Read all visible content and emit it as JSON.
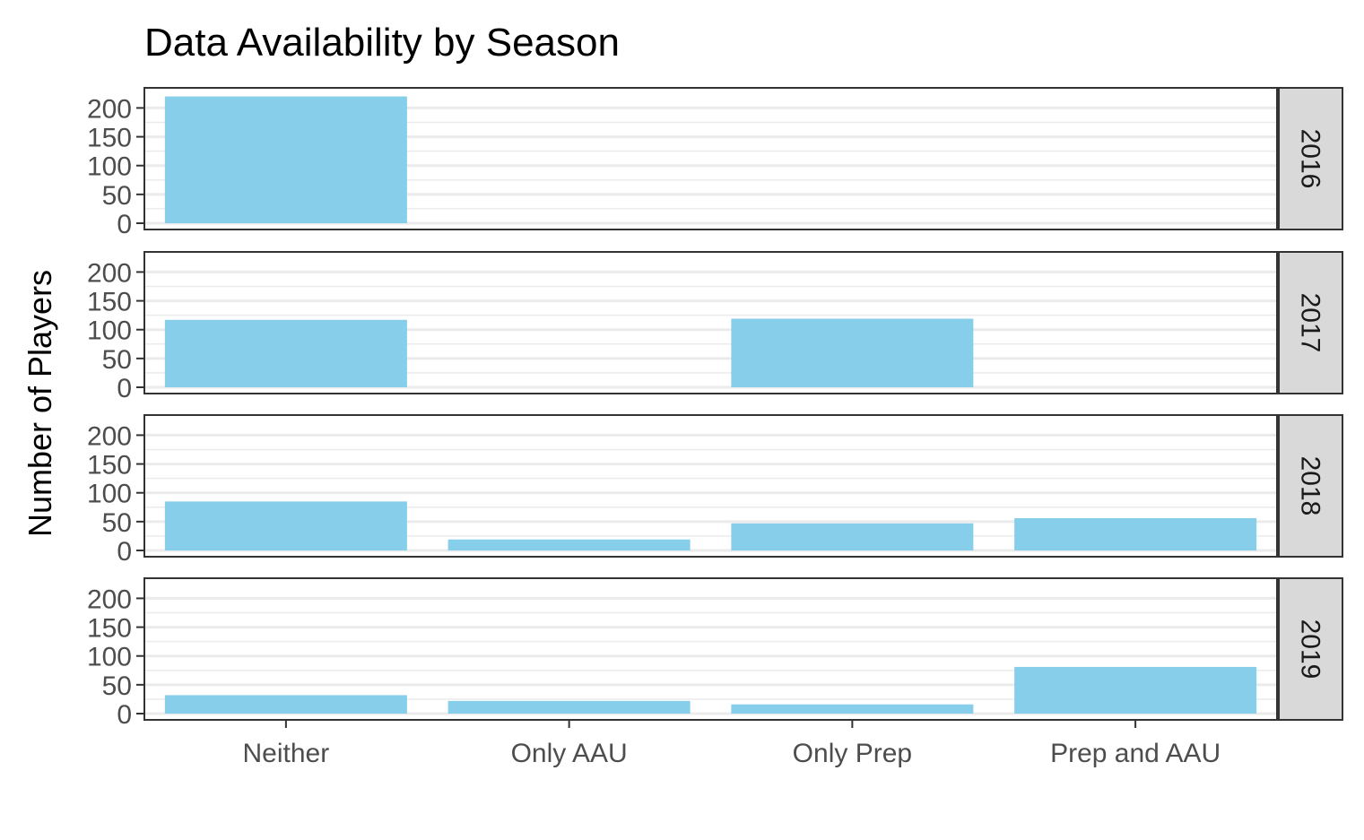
{
  "chart_data": {
    "type": "bar",
    "title": "Data Availability by Season",
    "xlabel": "",
    "ylabel": "Number of Players",
    "ylim": [
      0,
      224
    ],
    "yticks": [
      0,
      50,
      100,
      150,
      200
    ],
    "categories": [
      "Neither",
      "Only AAU",
      "Only Prep",
      "Prep and AAU"
    ],
    "facet_layout": "rows",
    "grid": "horizontal",
    "bar_color": "#87CEEB",
    "panels": [
      {
        "facet": "2016",
        "values": [
          220,
          0,
          0,
          0
        ]
      },
      {
        "facet": "2017",
        "values": [
          117,
          0,
          119,
          0
        ]
      },
      {
        "facet": "2018",
        "values": [
          85,
          19,
          47,
          56
        ]
      },
      {
        "facet": "2019",
        "values": [
          32,
          22,
          16,
          81
        ]
      }
    ]
  }
}
